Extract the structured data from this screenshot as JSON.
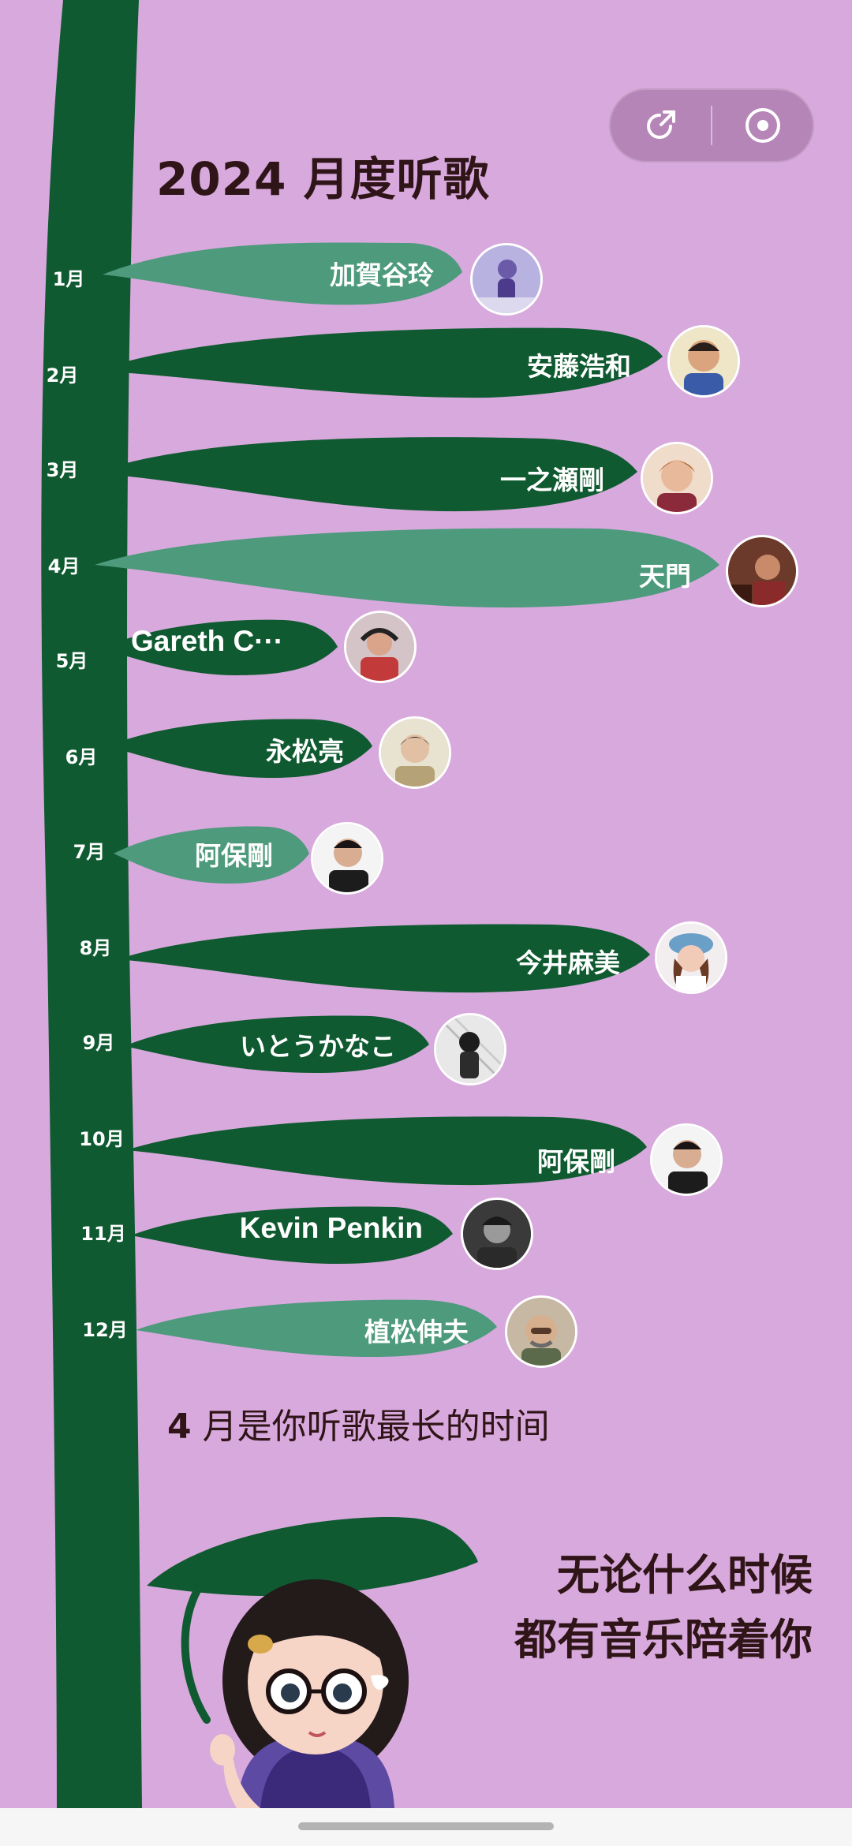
{
  "header": {
    "title": "2024 月度听歌",
    "share_icon": "share-icon",
    "record_icon": "record-icon"
  },
  "months": [
    {
      "month": "1月",
      "artist": "加賀谷玲",
      "color": "#4d9a7c"
    },
    {
      "month": "2月",
      "artist": "安藤浩和",
      "color": "#0f5a30"
    },
    {
      "month": "3月",
      "artist": "一之瀬剛",
      "color": "#0f5a30"
    },
    {
      "month": "4月",
      "artist": "天門",
      "color": "#4d9a7c"
    },
    {
      "month": "5月",
      "artist": "Gareth C···",
      "color": "#0f5a30"
    },
    {
      "month": "6月",
      "artist": "永松亮",
      "color": "#0f5a30"
    },
    {
      "month": "7月",
      "artist": "阿保剛",
      "color": "#4d9a7c"
    },
    {
      "month": "8月",
      "artist": "今井麻美",
      "color": "#0f5a30"
    },
    {
      "month": "9月",
      "artist": "いとうかなこ",
      "color": "#0f5a30"
    },
    {
      "month": "10月",
      "artist": "阿保剛",
      "color": "#0f5a30"
    },
    {
      "month": "11月",
      "artist": "Kevin Penkin",
      "color": "#0f5a30"
    },
    {
      "month": "12月",
      "artist": "植松伸夫",
      "color": "#4d9a7c"
    }
  ],
  "summary": {
    "highlight": "4",
    "text": "月是你听歌最长的时间"
  },
  "slogan": {
    "line1": "无论什么时候",
    "line2": "都有音乐陪着你"
  },
  "colors": {
    "background": "#d8a9dc",
    "stem": "#0f5a30",
    "leaf_dark": "#0f5a30",
    "leaf_light": "#4d9a7c"
  }
}
